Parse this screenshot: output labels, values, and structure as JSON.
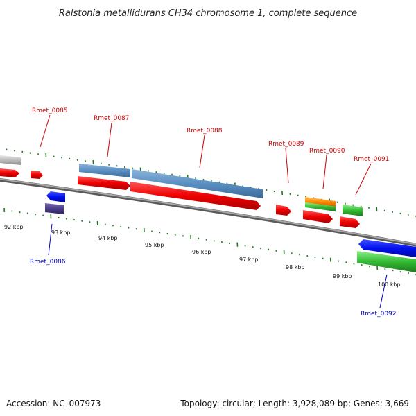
{
  "title": "Ralstonia metallidurans CH34 chromosome 1, complete sequence",
  "footer": {
    "accession": "Accession: NC_007973",
    "summary": "Topology: circular; Length: 3,928,089 bp; Genes: 3,669"
  },
  "colors": {
    "backbone": "#808080",
    "tick": "#1a7a1a",
    "label_forward": "#cc0000",
    "label_reverse": "#0000bb"
  },
  "scale_ticks": [
    "92 kbp",
    "93 kbp",
    "94 kbp",
    "95 kbp",
    "96 kbp",
    "97 kbp",
    "98 kbp",
    "99 kbp",
    "100 kbp"
  ],
  "gene_labels": [
    {
      "name": "Rmet_0085",
      "strand": "forward"
    },
    {
      "name": "Rmet_0086",
      "strand": "reverse"
    },
    {
      "name": "Rmet_0087",
      "strand": "forward"
    },
    {
      "name": "Rmet_0088",
      "strand": "forward"
    },
    {
      "name": "Rmet_0089",
      "strand": "forward"
    },
    {
      "name": "Rmet_0090",
      "strand": "forward"
    },
    {
      "name": "Rmet_0091",
      "strand": "forward"
    },
    {
      "name": "Rmet_0092",
      "strand": "reverse"
    }
  ],
  "features": [
    {
      "type": "gene",
      "color": "#dd0000"
    },
    {
      "type": "CDS",
      "color": "#4a7fb5"
    },
    {
      "type": "reverse gene",
      "color": "#0010ee"
    },
    {
      "type": "reverse CDS",
      "color": "#4b3c8a"
    },
    {
      "type": "tRNA",
      "color": "#ff8c00"
    },
    {
      "type": "rRNA",
      "color": "#33bb33"
    },
    {
      "type": "other",
      "color": "#bbbbbb"
    }
  ]
}
